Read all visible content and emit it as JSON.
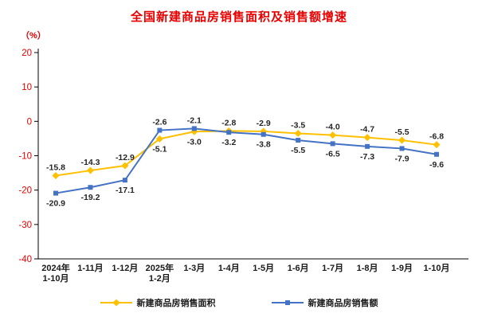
{
  "chart_data": {
    "type": "line",
    "title": "全国新建商品房销售面积及销售额增速",
    "ylabel": "（%）",
    "xlabel": "",
    "categories": [
      [
        "2024年",
        "1-10月"
      ],
      [
        "1-11月"
      ],
      [
        "1-12月"
      ],
      [
        "2025年",
        "1-2月"
      ],
      [
        "1-3月"
      ],
      [
        "1-4月"
      ],
      [
        "1-5月"
      ],
      [
        "1-6月"
      ],
      [
        "1-7月"
      ],
      [
        "1-8月"
      ],
      [
        "1-9月"
      ],
      [
        "1-10月"
      ]
    ],
    "series": [
      {
        "name": "新建商品房销售面积",
        "marker": "diamond",
        "color": "#FFC000",
        "values": [
          -15.8,
          -14.3,
          -12.9,
          -5.1,
          -3.0,
          -2.8,
          -2.9,
          -3.5,
          -4.0,
          -4.7,
          -5.5,
          -6.8
        ]
      },
      {
        "name": "新建商品房销售额",
        "marker": "square",
        "color": "#4472C4",
        "values": [
          -20.9,
          -19.2,
          -17.1,
          -2.6,
          -2.1,
          -3.2,
          -3.8,
          -5.5,
          -6.5,
          -7.3,
          -7.9,
          -9.6
        ]
      }
    ],
    "ylim": [
      -40,
      20
    ],
    "yticks": [
      20,
      10,
      0,
      -10,
      -20,
      -30,
      -40
    ],
    "grid": false,
    "legend_position": "bottom",
    "colors": {
      "title": "#e60000",
      "y_tick_label": "#e60000",
      "x_label": "#1a1a1a",
      "data_label": "#262626",
      "axis": "#000000"
    }
  }
}
